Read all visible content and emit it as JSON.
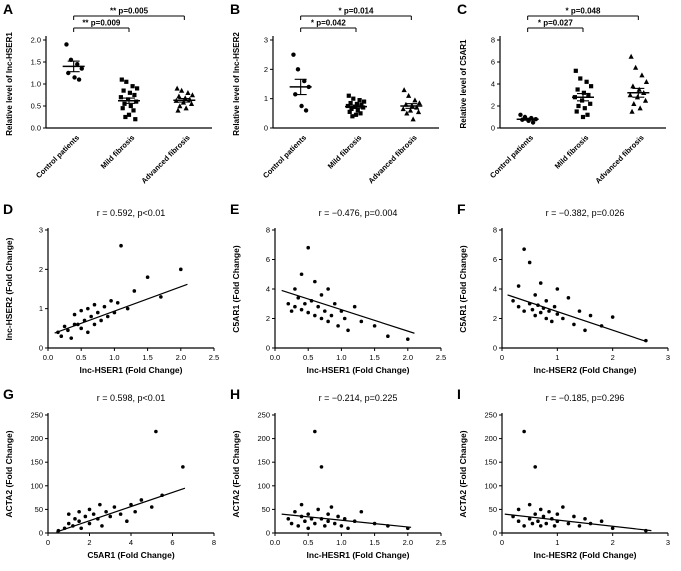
{
  "chart_data": [
    {
      "panel": "A",
      "type": "scatter",
      "subtype": "grouped-dot",
      "ylabel": "Relative level of lnc-HSER1",
      "ylim": [
        0,
        2
      ],
      "yticks": [
        "0.0",
        "0.5",
        "1.0",
        "1.5",
        "2.0"
      ],
      "categories": [
        "Control patients",
        "Mild fibrosis",
        "Advanced fibrosis"
      ],
      "groups": [
        {
          "name": "Control patients",
          "marker": "circle",
          "mean": 1.4,
          "sem": 0.12,
          "values": [
            1.9,
            1.55,
            1.45,
            1.35,
            1.25,
            1.15,
            1.1
          ]
        },
        {
          "name": "Mild fibrosis",
          "marker": "square",
          "mean": 0.62,
          "sem": 0.06,
          "values": [
            1.1,
            1.05,
            0.95,
            0.9,
            0.85,
            0.8,
            0.75,
            0.7,
            0.65,
            0.6,
            0.55,
            0.5,
            0.45,
            0.4,
            0.3,
            0.25,
            0.2
          ]
        },
        {
          "name": "Advanced fibrosis",
          "marker": "triangle",
          "mean": 0.63,
          "sem": 0.04,
          "values": [
            0.9,
            0.85,
            0.8,
            0.75,
            0.72,
            0.68,
            0.65,
            0.62,
            0.58,
            0.55,
            0.5,
            0.45,
            0.4
          ]
        }
      ],
      "significance": [
        {
          "label": "** p=0.005",
          "from": 0,
          "to": 2
        },
        {
          "label": "** p=0.009",
          "from": 0,
          "to": 1
        }
      ]
    },
    {
      "panel": "B",
      "type": "scatter",
      "subtype": "grouped-dot",
      "ylabel": "Relative level of lnc-HSER2",
      "ylim": [
        0,
        3
      ],
      "yticks": [
        "0",
        "1",
        "2",
        "3"
      ],
      "categories": [
        "Control patients",
        "Mild fibrosis",
        "Advanced fibrosis"
      ],
      "groups": [
        {
          "name": "Control patients",
          "marker": "circle",
          "mean": 1.4,
          "sem": 0.26,
          "values": [
            2.5,
            2.0,
            1.6,
            1.4,
            1.15,
            0.75,
            0.6
          ]
        },
        {
          "name": "Mild fibrosis",
          "marker": "square",
          "mean": 0.73,
          "sem": 0.05,
          "values": [
            1.1,
            1.0,
            0.95,
            0.9,
            0.85,
            0.82,
            0.8,
            0.75,
            0.72,
            0.7,
            0.65,
            0.6,
            0.55,
            0.5,
            0.45,
            0.4
          ]
        },
        {
          "name": "Advanced fibrosis",
          "marker": "triangle",
          "mean": 0.75,
          "sem": 0.08,
          "values": [
            1.3,
            1.1,
            0.95,
            0.85,
            0.8,
            0.75,
            0.7,
            0.65,
            0.6,
            0.55,
            0.5,
            0.3
          ]
        }
      ],
      "significance": [
        {
          "label": "* p=0.014",
          "from": 0,
          "to": 2
        },
        {
          "label": "* p=0.042",
          "from": 0,
          "to": 1
        }
      ]
    },
    {
      "panel": "C",
      "type": "scatter",
      "subtype": "grouped-dot",
      "ylabel": "Relative level of C5AR1",
      "ylim": [
        0,
        8
      ],
      "yticks": [
        "0",
        "2",
        "4",
        "6",
        "8"
      ],
      "categories": [
        "Control patients",
        "Mild fibrosis",
        "Advanced fibrosis"
      ],
      "groups": [
        {
          "name": "Control patients",
          "marker": "circle",
          "mean": 0.8,
          "sem": 0.09,
          "values": [
            1.2,
            1.0,
            0.9,
            0.8,
            0.75,
            0.65,
            0.5
          ]
        },
        {
          "name": "Mild fibrosis",
          "marker": "square",
          "mean": 2.8,
          "sem": 0.33,
          "values": [
            5.2,
            4.5,
            4.2,
            3.8,
            3.5,
            3.2,
            3.0,
            2.8,
            2.5,
            2.2,
            2.0,
            1.8,
            1.5,
            1.2,
            1.0
          ]
        },
        {
          "name": "Advanced fibrosis",
          "marker": "triangle",
          "mean": 3.2,
          "sem": 0.4,
          "values": [
            6.5,
            5.5,
            4.8,
            4.2,
            3.8,
            3.5,
            3.2,
            3.0,
            2.8,
            2.5,
            2.2,
            1.8,
            1.5
          ]
        }
      ],
      "significance": [
        {
          "label": "* p=0.048",
          "from": 0,
          "to": 2
        },
        {
          "label": "* p=0.027",
          "from": 0,
          "to": 1
        }
      ]
    },
    {
      "panel": "D",
      "type": "scatter",
      "subtype": "correlation",
      "annotation": "r  = 0.592, p<0.01",
      "xlabel": "lnc-HSER1  (Fold Change)",
      "ylabel": "lnc-HSER2 (Fold Change)",
      "xlim": [
        0,
        2.5
      ],
      "xticks": [
        "0.0",
        "0.5",
        "1.0",
        "1.5",
        "2.0",
        "2.5"
      ],
      "ylim": [
        0,
        3
      ],
      "yticks": [
        "0",
        "1",
        "2",
        "3"
      ],
      "points": [
        [
          0.15,
          0.4
        ],
        [
          0.2,
          0.3
        ],
        [
          0.25,
          0.55
        ],
        [
          0.3,
          0.45
        ],
        [
          0.35,
          0.25
        ],
        [
          0.4,
          0.6
        ],
        [
          0.4,
          0.85
        ],
        [
          0.45,
          0.6
        ],
        [
          0.5,
          0.5
        ],
        [
          0.5,
          0.95
        ],
        [
          0.55,
          0.7
        ],
        [
          0.6,
          0.4
        ],
        [
          0.6,
          1.0
        ],
        [
          0.65,
          0.8
        ],
        [
          0.7,
          0.6
        ],
        [
          0.7,
          1.1
        ],
        [
          0.75,
          0.9
        ],
        [
          0.8,
          0.7
        ],
        [
          0.85,
          1.05
        ],
        [
          0.9,
          0.8
        ],
        [
          0.95,
          1.2
        ],
        [
          1.0,
          0.9
        ],
        [
          1.05,
          1.15
        ],
        [
          1.1,
          2.6
        ],
        [
          1.2,
          1.0
        ],
        [
          1.3,
          1.45
        ],
        [
          1.5,
          1.8
        ],
        [
          1.7,
          1.3
        ],
        [
          2.0,
          2.0
        ]
      ],
      "regression_line": [
        [
          0.1,
          0.38
        ],
        [
          2.1,
          1.62
        ]
      ]
    },
    {
      "panel": "E",
      "type": "scatter",
      "subtype": "correlation",
      "annotation": "r  = −0.476, p=0.004",
      "xlabel": "lnc-HSER1 (Fold Change)",
      "ylabel": "C5AR1 (Fold Change)",
      "xlim": [
        0,
        2.5
      ],
      "xticks": [
        "0.0",
        "0.5",
        "1.0",
        "1.5",
        "2.0",
        "2.5"
      ],
      "ylim": [
        0,
        8
      ],
      "yticks": [
        "0",
        "2",
        "4",
        "6",
        "8"
      ],
      "points": [
        [
          0.2,
          3.0
        ],
        [
          0.25,
          2.5
        ],
        [
          0.3,
          4.0
        ],
        [
          0.3,
          2.8
        ],
        [
          0.35,
          3.4
        ],
        [
          0.4,
          2.6
        ],
        [
          0.4,
          5.0
        ],
        [
          0.45,
          3.0
        ],
        [
          0.5,
          2.4
        ],
        [
          0.5,
          6.8
        ],
        [
          0.55,
          3.2
        ],
        [
          0.6,
          2.2
        ],
        [
          0.6,
          4.5
        ],
        [
          0.65,
          2.8
        ],
        [
          0.7,
          2.0
        ],
        [
          0.7,
          3.6
        ],
        [
          0.75,
          2.5
        ],
        [
          0.8,
          1.8
        ],
        [
          0.8,
          4.0
        ],
        [
          0.85,
          2.2
        ],
        [
          0.9,
          3.0
        ],
        [
          0.95,
          1.5
        ],
        [
          1.0,
          2.5
        ],
        [
          1.05,
          2.0
        ],
        [
          1.1,
          1.2
        ],
        [
          1.2,
          2.8
        ],
        [
          1.3,
          1.8
        ],
        [
          1.5,
          1.5
        ],
        [
          1.7,
          0.8
        ],
        [
          2.0,
          0.6
        ]
      ],
      "regression_line": [
        [
          0.1,
          3.9
        ],
        [
          2.1,
          1.0
        ]
      ]
    },
    {
      "panel": "F",
      "type": "scatter",
      "subtype": "correlation",
      "annotation": "r  = −0.382, p=0.026",
      "xlabel": "lnc-HSER2 (Fold Change)",
      "ylabel": "C5AR1 (Fold Change)",
      "xlim": [
        0,
        3
      ],
      "xticks": [
        "0",
        "1",
        "2",
        "3"
      ],
      "ylim": [
        0,
        8
      ],
      "yticks": [
        "0",
        "2",
        "4",
        "6",
        "8"
      ],
      "points": [
        [
          0.2,
          3.2
        ],
        [
          0.3,
          2.8
        ],
        [
          0.3,
          4.2
        ],
        [
          0.4,
          2.5
        ],
        [
          0.4,
          6.7
        ],
        [
          0.5,
          3.0
        ],
        [
          0.5,
          5.8
        ],
        [
          0.55,
          2.6
        ],
        [
          0.6,
          2.2
        ],
        [
          0.6,
          3.6
        ],
        [
          0.65,
          2.9
        ],
        [
          0.7,
          2.4
        ],
        [
          0.7,
          4.4
        ],
        [
          0.75,
          2.7
        ],
        [
          0.8,
          2.0
        ],
        [
          0.8,
          3.2
        ],
        [
          0.85,
          2.5
        ],
        [
          0.9,
          1.8
        ],
        [
          0.95,
          2.8
        ],
        [
          1.0,
          2.3
        ],
        [
          1.0,
          4.0
        ],
        [
          1.1,
          2.0
        ],
        [
          1.2,
          3.4
        ],
        [
          1.3,
          1.6
        ],
        [
          1.4,
          2.5
        ],
        [
          1.5,
          1.2
        ],
        [
          1.6,
          2.2
        ],
        [
          1.8,
          1.5
        ],
        [
          2.0,
          2.1
        ],
        [
          2.6,
          0.5
        ]
      ],
      "regression_line": [
        [
          0.1,
          3.6
        ],
        [
          2.6,
          0.45
        ]
      ]
    },
    {
      "panel": "G",
      "type": "scatter",
      "subtype": "correlation",
      "annotation": "r  = 0.598, p<0.01",
      "xlabel": "C5AR1 (Fold Change)",
      "ylabel": "ACTA2 (Fold Change)",
      "xlim": [
        0,
        8
      ],
      "xticks": [
        "0",
        "2",
        "4",
        "6",
        "8"
      ],
      "ylim": [
        0,
        250
      ],
      "yticks": [
        "0",
        "50",
        "100",
        "150",
        "200",
        "250"
      ],
      "points": [
        [
          0.5,
          5
        ],
        [
          0.8,
          10
        ],
        [
          1.0,
          20
        ],
        [
          1.0,
          40
        ],
        [
          1.2,
          15
        ],
        [
          1.3,
          30
        ],
        [
          1.5,
          25
        ],
        [
          1.5,
          45
        ],
        [
          1.6,
          10
        ],
        [
          1.8,
          35
        ],
        [
          2.0,
          20
        ],
        [
          2.0,
          50
        ],
        [
          2.2,
          40
        ],
        [
          2.4,
          30
        ],
        [
          2.5,
          60
        ],
        [
          2.6,
          15
        ],
        [
          2.8,
          45
        ],
        [
          3.0,
          35
        ],
        [
          3.2,
          55
        ],
        [
          3.5,
          40
        ],
        [
          3.8,
          25
        ],
        [
          4.0,
          60
        ],
        [
          4.2,
          45
        ],
        [
          4.5,
          70
        ],
        [
          5.0,
          55
        ],
        [
          5.2,
          215
        ],
        [
          5.5,
          80
        ],
        [
          6.5,
          140
        ]
      ],
      "regression_line": [
        [
          0.4,
          2
        ],
        [
          6.6,
          95
        ]
      ]
    },
    {
      "panel": "H",
      "type": "scatter",
      "subtype": "correlation",
      "annotation": "r  = −0.214, p=0.225",
      "xlabel": "lnc-HESR1 (Fold Change)",
      "ylabel": "ACTA2 (Fold Change)",
      "xlim": [
        0,
        2.5
      ],
      "xticks": [
        "0.0",
        "0.5",
        "1.0",
        "1.5",
        "2.0",
        "2.5"
      ],
      "ylim": [
        0,
        250
      ],
      "yticks": [
        "0",
        "50",
        "100",
        "150",
        "200",
        "250"
      ],
      "points": [
        [
          0.2,
          30
        ],
        [
          0.25,
          20
        ],
        [
          0.3,
          45
        ],
        [
          0.35,
          15
        ],
        [
          0.4,
          35
        ],
        [
          0.4,
          60
        ],
        [
          0.45,
          25
        ],
        [
          0.5,
          40
        ],
        [
          0.5,
          10
        ],
        [
          0.55,
          30
        ],
        [
          0.6,
          215
        ],
        [
          0.6,
          20
        ],
        [
          0.65,
          50
        ],
        [
          0.7,
          140
        ],
        [
          0.7,
          30
        ],
        [
          0.75,
          15
        ],
        [
          0.8,
          40
        ],
        [
          0.8,
          25
        ],
        [
          0.85,
          55
        ],
        [
          0.9,
          20
        ],
        [
          0.95,
          35
        ],
        [
          1.0,
          15
        ],
        [
          1.05,
          30
        ],
        [
          1.1,
          10
        ],
        [
          1.2,
          25
        ],
        [
          1.3,
          45
        ],
        [
          1.5,
          20
        ],
        [
          1.7,
          15
        ],
        [
          2.0,
          10
        ]
      ],
      "regression_line": [
        [
          0.1,
          40
        ],
        [
          2.05,
          12
        ]
      ]
    },
    {
      "panel": "I",
      "type": "scatter",
      "subtype": "correlation",
      "annotation": "r  = −0.185, p=0.296",
      "xlabel": "lnc-HESR2 (Fold Change)",
      "ylabel": "ACTA2 (Fold Change)",
      "xlim": [
        0,
        3
      ],
      "xticks": [
        "0",
        "1",
        "2",
        "3"
      ],
      "ylim": [
        0,
        250
      ],
      "yticks": [
        "0",
        "50",
        "100",
        "150",
        "200",
        "250"
      ],
      "points": [
        [
          0.2,
          35
        ],
        [
          0.3,
          25
        ],
        [
          0.3,
          50
        ],
        [
          0.4,
          15
        ],
        [
          0.4,
          215
        ],
        [
          0.5,
          30
        ],
        [
          0.5,
          60
        ],
        [
          0.55,
          20
        ],
        [
          0.6,
          40
        ],
        [
          0.6,
          140
        ],
        [
          0.65,
          25
        ],
        [
          0.7,
          50
        ],
        [
          0.7,
          15
        ],
        [
          0.75,
          35
        ],
        [
          0.8,
          20
        ],
        [
          0.85,
          45
        ],
        [
          0.9,
          30
        ],
        [
          0.95,
          15
        ],
        [
          1.0,
          40
        ],
        [
          1.0,
          25
        ],
        [
          1.1,
          55
        ],
        [
          1.2,
          20
        ],
        [
          1.3,
          35
        ],
        [
          1.4,
          15
        ],
        [
          1.5,
          30
        ],
        [
          1.6,
          20
        ],
        [
          1.8,
          25
        ],
        [
          2.0,
          10
        ],
        [
          2.6,
          5
        ]
      ],
      "regression_line": [
        [
          0.05,
          40
        ],
        [
          2.7,
          5
        ]
      ]
    }
  ]
}
